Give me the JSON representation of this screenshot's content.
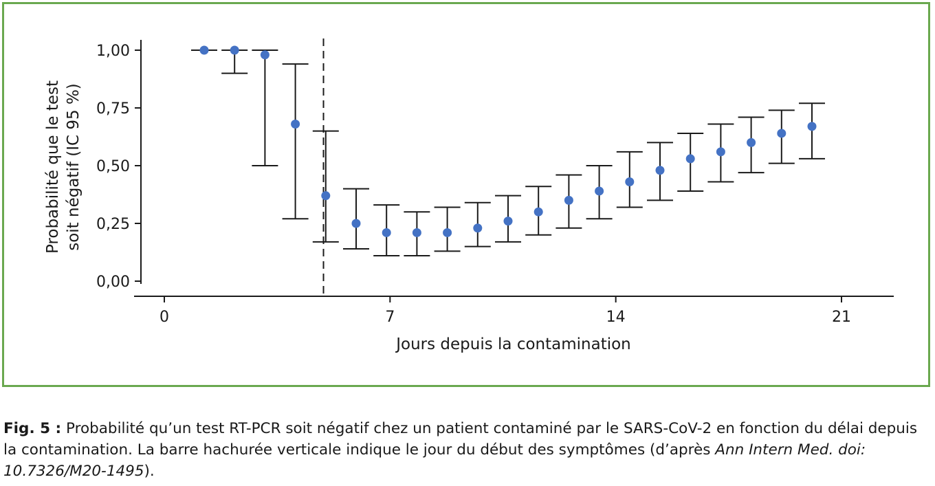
{
  "chart_data": {
    "type": "scatter",
    "xlabel": "Jours depuis la contamination",
    "ylabel_lines": [
      "Probabilité que le test",
      "soit négatif (IC 95 %)"
    ],
    "xlim": [
      0,
      21
    ],
    "ylim": [
      0,
      1
    ],
    "x_ticks": [
      0,
      7,
      14,
      21
    ],
    "x_tick_labels": [
      "0",
      "7",
      "14",
      "21"
    ],
    "y_ticks": [
      0,
      0.25,
      0.5,
      0.75,
      1.0
    ],
    "y_tick_labels": [
      "0,00",
      "0,25",
      "0,50",
      "0,75",
      "1,00"
    ],
    "symptom_onset_day": 5,
    "point_color": "#4472c4",
    "series": [
      {
        "x": [
          1,
          2,
          3,
          4,
          5,
          6,
          7,
          8,
          9,
          10,
          11,
          12,
          13,
          14,
          15,
          16,
          17,
          18,
          19,
          20,
          21
        ],
        "y": [
          1.0,
          1.0,
          0.98,
          0.68,
          0.37,
          0.25,
          0.21,
          0.21,
          0.21,
          0.23,
          0.26,
          0.3,
          0.35,
          0.39,
          0.43,
          0.48,
          0.53,
          0.56,
          0.6,
          0.64,
          0.67
        ],
        "lower": [
          1.0,
          0.9,
          0.5,
          0.27,
          0.17,
          0.14,
          0.11,
          0.11,
          0.13,
          0.15,
          0.17,
          0.2,
          0.23,
          0.27,
          0.32,
          0.35,
          0.39,
          0.43,
          0.47,
          0.51,
          0.53
        ],
        "upper": [
          1.0,
          1.0,
          1.0,
          0.94,
          0.65,
          0.4,
          0.33,
          0.3,
          0.32,
          0.34,
          0.37,
          0.41,
          0.46,
          0.5,
          0.56,
          0.6,
          0.64,
          0.68,
          0.71,
          0.74,
          0.77
        ]
      }
    ]
  },
  "caption": {
    "label": "Fig. 5 :",
    "text": " Probabilité qu’un test RT-PCR soit négatif chez un patient contaminé par le SARS-CoV-2 en fonction du délai depuis la contamination. La barre hachurée verticale indique le jour du début des symptômes (d’après ",
    "citation": "Ann Intern Med. doi: 10.7326/M20-1495",
    "suffix": ")."
  }
}
